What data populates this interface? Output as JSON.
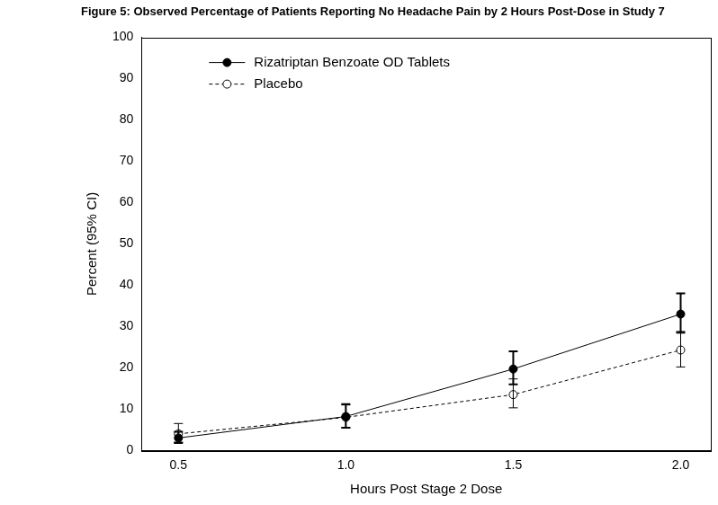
{
  "chart_data": {
    "type": "line",
    "title": "Figure 5: Observed Percentage of Patients Reporting No Headache Pain by 2 Hours Post-Dose in Study 7",
    "x_label": "Hours Post Stage 2 Dose",
    "y_label": "Percent (95% CI)",
    "x": [
      0.5,
      1.0,
      1.5,
      2.0
    ],
    "series": [
      {
        "name": "Rizatriptan Benzoate OD Tablets",
        "color": "#000000",
        "marker": "filled_circle",
        "line_style": "solid",
        "values": [
          3,
          8.2,
          19.7,
          33
        ],
        "ci_low": [
          1.8,
          5.5,
          16,
          28.5
        ],
        "ci_high": [
          4.5,
          11.2,
          24,
          38
        ]
      },
      {
        "name": "Placebo",
        "color": "#000000",
        "marker": "open_circle",
        "line_style": "dashed",
        "values": [
          4,
          8,
          13.5,
          24.3
        ],
        "ci_low": [
          2,
          5.5,
          10.3,
          20.2
        ],
        "ci_high": [
          6.5,
          11,
          17.3,
          28.8
        ]
      }
    ],
    "xlim": [
      0.39,
      2.09
    ],
    "xticks": [
      {
        "value": 0.5,
        "label": "0.5"
      },
      {
        "value": 1,
        "label": "1.0"
      },
      {
        "value": 1.5,
        "label": "1.5"
      },
      {
        "value": 2,
        "label": "2.0"
      }
    ],
    "ylim": [
      0,
      100
    ],
    "yticks": [
      0,
      10,
      20,
      30,
      40,
      50,
      60,
      70,
      80,
      90,
      100
    ],
    "grid": false,
    "legend": "upper left"
  }
}
